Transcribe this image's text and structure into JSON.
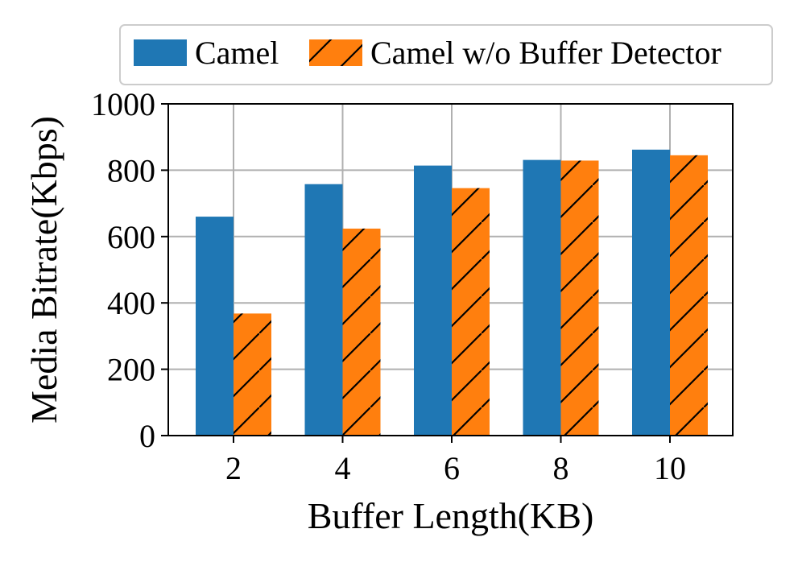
{
  "chart_data": {
    "type": "bar",
    "categories": [
      "2",
      "4",
      "6",
      "8",
      "10"
    ],
    "series": [
      {
        "name": "Camel",
        "values": [
          660,
          758,
          814,
          831,
          862
        ],
        "color": "#1f77b4",
        "hatch": "none"
      },
      {
        "name": "Camel w/o Buffer Detector",
        "values": [
          368,
          624,
          746,
          829,
          845
        ],
        "color": "#ff7f0e",
        "hatch": "diagonal"
      }
    ],
    "xlabel": "Buffer Length(KB)",
    "ylabel": "Media Bitrate(Kbps)",
    "ylim": [
      0,
      1000
    ],
    "yticks": [
      "0",
      "200",
      "400",
      "600",
      "800",
      "1000"
    ],
    "grid": true,
    "legend_position": "top"
  }
}
